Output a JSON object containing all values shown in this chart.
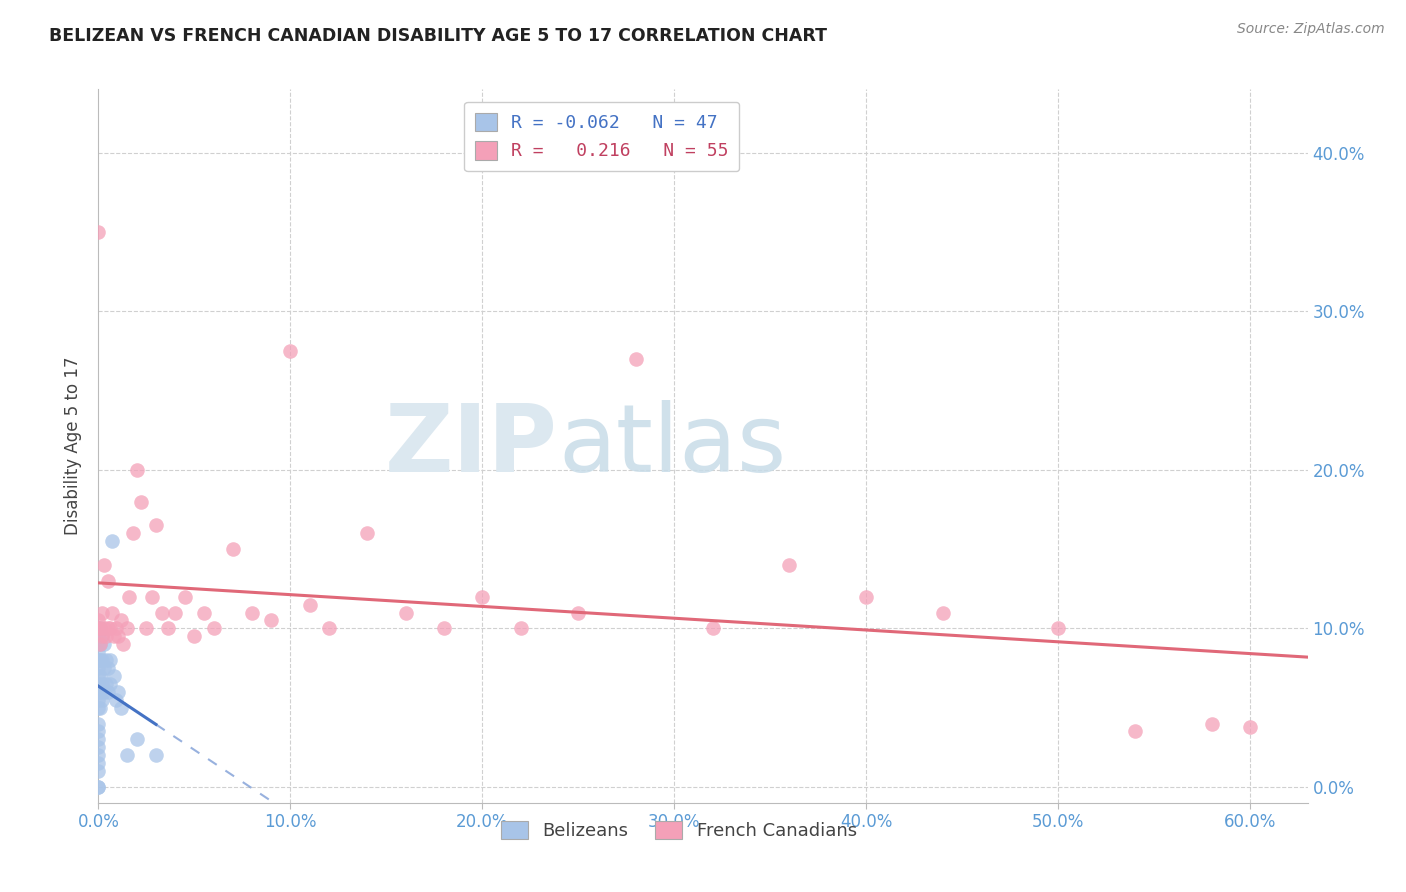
{
  "title": "BELIZEAN VS FRENCH CANADIAN DISABILITY AGE 5 TO 17 CORRELATION CHART",
  "source": "Source: ZipAtlas.com",
  "ylabel": "Disability Age 5 to 17",
  "xlim": [
    0.0,
    0.63
  ],
  "ylim": [
    -0.01,
    0.44
  ],
  "xtick_vals": [
    0.0,
    0.1,
    0.2,
    0.3,
    0.4,
    0.5,
    0.6
  ],
  "xtick_labels": [
    "0.0%",
    "10.0%",
    "20.0%",
    "30.0%",
    "40.0%",
    "50.0%",
    "60.0%"
  ],
  "ytick_vals": [
    0.0,
    0.1,
    0.2,
    0.3,
    0.4
  ],
  "ytick_labels": [
    "0.0%",
    "10.0%",
    "20.0%",
    "30.0%",
    "40.0%"
  ],
  "belizean_R": -0.062,
  "belizean_N": 47,
  "french_canadian_R": 0.216,
  "french_canadian_N": 55,
  "belizean_color": "#a8c4e8",
  "french_canadian_color": "#f4a0b8",
  "belizean_line_color": "#4472c4",
  "french_canadian_line_color": "#e06878",
  "grid_color": "#d0d0d0",
  "axis_tick_color": "#5b9bd5",
  "belizean_x": [
    0.0,
    0.0,
    0.0,
    0.0,
    0.0,
    0.0,
    0.0,
    0.0,
    0.0,
    0.0,
    0.0,
    0.0,
    0.0,
    0.0,
    0.0,
    0.0,
    0.0,
    0.0,
    0.0,
    0.0,
    0.001,
    0.001,
    0.001,
    0.001,
    0.001,
    0.001,
    0.002,
    0.002,
    0.002,
    0.002,
    0.003,
    0.003,
    0.003,
    0.004,
    0.004,
    0.005,
    0.005,
    0.006,
    0.006,
    0.007,
    0.008,
    0.009,
    0.01,
    0.012,
    0.015,
    0.02,
    0.03
  ],
  "belizean_y": [
    0.0,
    0.0,
    0.01,
    0.015,
    0.02,
    0.025,
    0.03,
    0.035,
    0.04,
    0.05,
    0.055,
    0.06,
    0.065,
    0.07,
    0.075,
    0.08,
    0.085,
    0.09,
    0.095,
    0.1,
    0.05,
    0.06,
    0.07,
    0.08,
    0.09,
    0.1,
    0.055,
    0.065,
    0.08,
    0.095,
    0.06,
    0.075,
    0.09,
    0.065,
    0.08,
    0.06,
    0.075,
    0.065,
    0.08,
    0.155,
    0.07,
    0.055,
    0.06,
    0.05,
    0.02,
    0.03,
    0.02
  ],
  "french_canadian_x": [
    0.0,
    0.0,
    0.0,
    0.001,
    0.001,
    0.002,
    0.002,
    0.003,
    0.003,
    0.004,
    0.005,
    0.005,
    0.006,
    0.007,
    0.008,
    0.009,
    0.01,
    0.012,
    0.013,
    0.015,
    0.016,
    0.018,
    0.02,
    0.022,
    0.025,
    0.028,
    0.03,
    0.033,
    0.036,
    0.04,
    0.045,
    0.05,
    0.055,
    0.06,
    0.07,
    0.08,
    0.09,
    0.1,
    0.11,
    0.12,
    0.14,
    0.16,
    0.18,
    0.2,
    0.22,
    0.25,
    0.28,
    0.32,
    0.36,
    0.4,
    0.44,
    0.5,
    0.54,
    0.58,
    0.6
  ],
  "french_canadian_y": [
    0.1,
    0.105,
    0.35,
    0.09,
    0.1,
    0.095,
    0.11,
    0.1,
    0.14,
    0.095,
    0.1,
    0.13,
    0.1,
    0.11,
    0.095,
    0.1,
    0.095,
    0.105,
    0.09,
    0.1,
    0.12,
    0.16,
    0.2,
    0.18,
    0.1,
    0.12,
    0.165,
    0.11,
    0.1,
    0.11,
    0.12,
    0.095,
    0.11,
    0.1,
    0.15,
    0.11,
    0.105,
    0.275,
    0.115,
    0.1,
    0.16,
    0.11,
    0.1,
    0.12,
    0.1,
    0.11,
    0.27,
    0.1,
    0.14,
    0.12,
    0.11,
    0.1,
    0.035,
    0.04,
    0.038
  ],
  "background_color": "#ffffff"
}
